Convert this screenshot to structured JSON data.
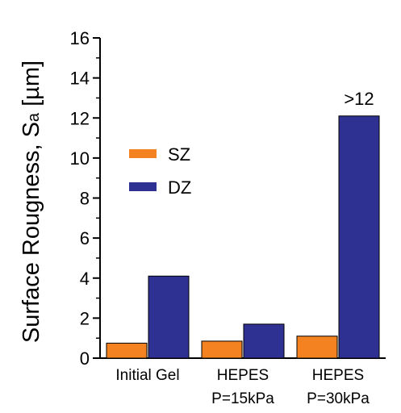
{
  "chart_data": {
    "type": "bar",
    "title": "",
    "xlabel": "",
    "ylabel": "Surface Rougness, S",
    "ylabel_subscript": "a",
    "ylabel_unit": " [µm]",
    "ylim": [
      0,
      16
    ],
    "yticks": [
      0,
      2,
      4,
      6,
      8,
      10,
      12,
      14,
      16
    ],
    "categories": [
      [
        "Initial Gel"
      ],
      [
        "HEPES",
        "P=15kPa"
      ],
      [
        "HEPES",
        "P=30kPa"
      ]
    ],
    "series": [
      {
        "name": "SZ",
        "color": "#f58220",
        "values": [
          0.75,
          0.85,
          1.1
        ]
      },
      {
        "name": "DZ",
        "color": "#2e3192",
        "values": [
          4.1,
          1.7,
          12.1
        ]
      }
    ],
    "annotations": [
      {
        "category_index": 2,
        "series_index": 1,
        "text": ">12"
      }
    ],
    "legend": {
      "placement": "center-left"
    },
    "grid": false
  }
}
